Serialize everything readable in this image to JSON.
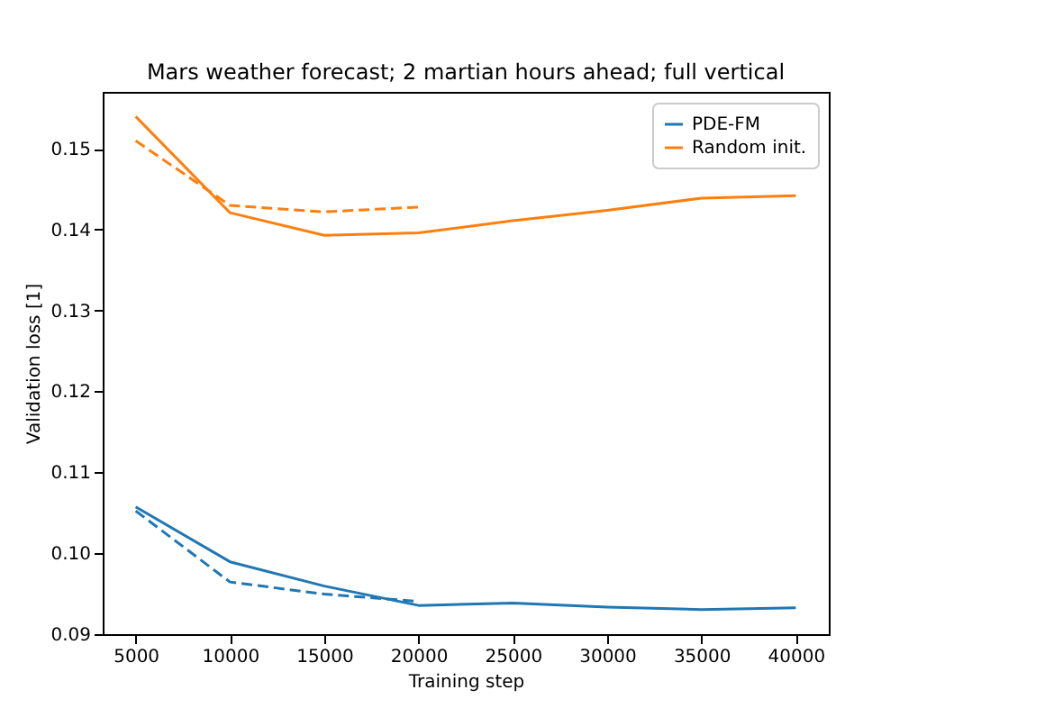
{
  "chart_data": {
    "type": "line",
    "title": "Mars weather forecast; 2 martian hours ahead; full vertical",
    "xlabel": "Training step",
    "ylabel": "Validation loss [1]",
    "x": [
      5000,
      10000,
      15000,
      20000,
      25000,
      30000,
      35000,
      40000
    ],
    "series": [
      {
        "name": "PDE-FM",
        "color": "#1f77b4",
        "line_style": "solid",
        "values": [
          0.1057,
          0.0989,
          0.0959,
          0.0935,
          0.0938,
          0.0933,
          0.093,
          0.0932
        ]
      },
      {
        "name": "Random init.",
        "color": "#ff7f0e",
        "line_style": "solid",
        "values": [
          0.154,
          0.1421,
          0.1393,
          0.1396,
          0.1411,
          0.1424,
          0.1439,
          0.1442
        ]
      },
      {
        "color": "#1f77b4",
        "line_style": "dashed",
        "x": [
          5000,
          10000,
          15000,
          20000
        ],
        "values": [
          0.1052,
          0.0964,
          0.0949,
          0.094
        ]
      },
      {
        "color": "#ff7f0e",
        "line_style": "dashed",
        "x": [
          5000,
          10000,
          15000,
          20000
        ],
        "values": [
          0.151,
          0.143,
          0.1422,
          0.1428
        ]
      }
    ],
    "xlim": [
      3250,
      41750
    ],
    "xticks": [
      5000,
      10000,
      15000,
      20000,
      25000,
      30000,
      35000,
      40000
    ],
    "ylim": [
      0.08995,
      0.15705
    ],
    "yticks": [
      0.09,
      {
        "value": 0.1,
        "label": "0.10"
      },
      0.11,
      0.12,
      0.13,
      0.14,
      0.15
    ],
    "grid": false,
    "legend": "top right",
    "marker": "none"
  }
}
